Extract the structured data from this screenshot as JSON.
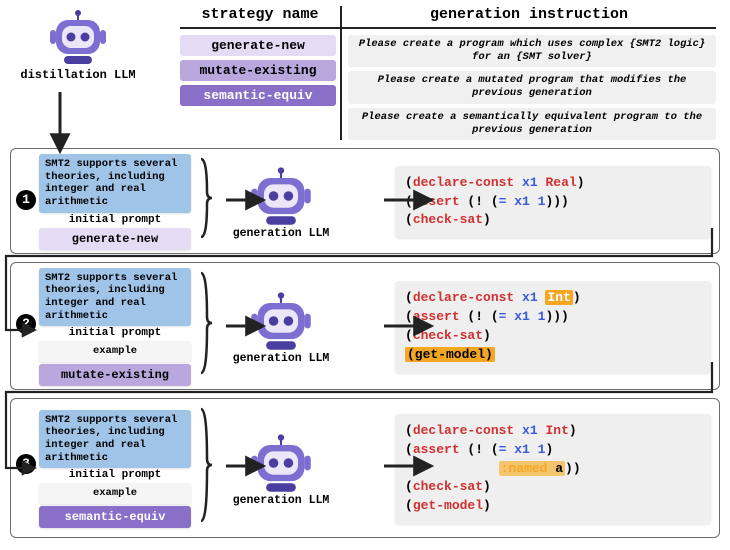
{
  "colors": {
    "grey_bg": "#efefef",
    "panel_border": "#6b6b6b",
    "initial_prompt_bg": "#9fc4e7",
    "strat1_bg": "#e4dbf4",
    "strat2_bg": "#b9a7dd",
    "strat3_bg": "#8a6fc9",
    "strat3_fg": "#ffffff",
    "example_bg": "#f5f5f5",
    "instr_bg": "#f0f0f0",
    "robot_face": "#ece7f8",
    "robot_head": "#7d6fd1",
    "robot_eye": "#4a3fa0",
    "robot_antenna": "#4a3fa0",
    "code_kw": "#d03030",
    "code_id": "#3a5bd9",
    "highlight": "#f5a623"
  },
  "header": {
    "left_title": "strategy name",
    "right_title": "generation instruction",
    "strategies": [
      {
        "name": "generate-new",
        "bg": "#e4dbf4",
        "fg": "#000000"
      },
      {
        "name": "mutate-existing",
        "bg": "#b9a7dd",
        "fg": "#000000"
      },
      {
        "name": "semantic-equiv",
        "bg": "#8a6fc9",
        "fg": "#ffffff"
      }
    ],
    "instructions": [
      "Please create a program which uses complex {SMT2 logic} for an {SMT solver}",
      "Please create a mutated program that modifies the previous generation",
      "Please create a semantically equivalent program to the previous generation"
    ]
  },
  "distill_label": "distillation LLM",
  "gen_label": "generation LLM",
  "initial_prompt_text": "SMT2 supports several theories, including integer and real arithmetic",
  "initial_prompt_label": "initial prompt",
  "example_label": "example",
  "steps": [
    {
      "n": "1",
      "has_example": false,
      "strategy": {
        "name": "generate-new",
        "bg": "#e4dbf4",
        "fg": "#000000"
      },
      "code_html": "(<span class='kw'>declare-const</span> <span class='id'>x1</span> <span class='ty'>Real</span>)\n(<span class='kw'>assert</span> (! (<span class='id'>= x1 1</span>)))\n(<span class='kw'>check-sat</span>)"
    },
    {
      "n": "2",
      "has_example": true,
      "strategy": {
        "name": "mutate-existing",
        "bg": "#b9a7dd",
        "fg": "#000000"
      },
      "code_html": "(<span class='kw'>declare-const</span> <span class='id'>x1</span> <span class='hl-box'>Int</span>)\n(<span class='kw'>assert</span> (! (<span class='id'>= x1 1</span>)))\n(<span class='kw'>check-sat</span>)\n<span class='hl-box-line'>(get-model)</span>"
    },
    {
      "n": "3",
      "has_example": true,
      "strategy": {
        "name": "semantic-equiv",
        "bg": "#8a6fc9",
        "fg": "#ffffff"
      },
      "code_html": "(<span class='kw'>declare-const</span> <span class='id'>x1</span> <span class='ty'>Int</span>)\n(<span class='kw'>assert</span> (! (<span class='id'>= x1 1</span>)\n            <span class='hl-inline'><span class='named'>:named</span> a</span>))\n(<span class='kw'>check-sat</span>)\n(<span class='kw'>get-model</span>)"
    }
  ],
  "layout": {
    "step_tops": [
      148,
      262,
      398
    ],
    "step_heights": [
      106,
      128,
      140
    ],
    "num_offsets": [
      42,
      52,
      56
    ]
  }
}
